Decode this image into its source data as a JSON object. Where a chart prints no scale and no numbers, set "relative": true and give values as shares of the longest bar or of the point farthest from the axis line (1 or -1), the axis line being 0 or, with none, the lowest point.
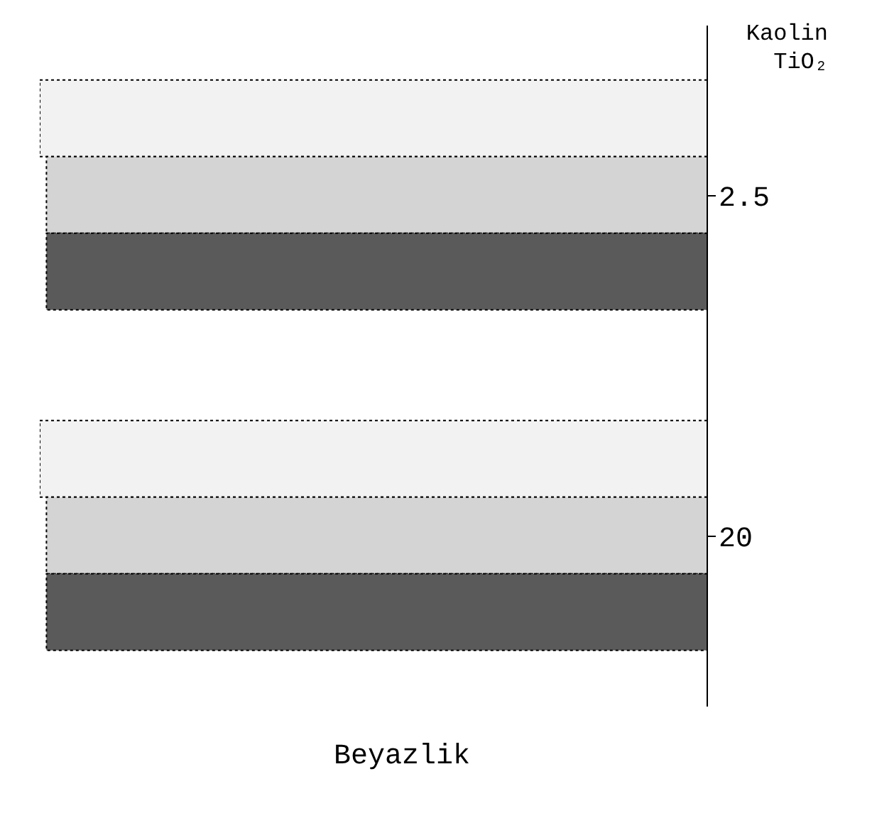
{
  "chart_data": {
    "type": "bar",
    "orientation": "horizontal",
    "relative": true,
    "xlabel": "Beyazlik",
    "ylabel": "TiO₂",
    "annotations": [
      "Kaolin"
    ],
    "categories": [
      "2.5",
      "20"
    ],
    "series": [
      {
        "color": "#f2f2f2",
        "values": [
          1,
          1
        ]
      },
      {
        "color": "#d4d4d4",
        "values": [
          0.99,
          0.99
        ]
      },
      {
        "color": "#5a5a5a",
        "values": [
          0.99,
          0.99
        ]
      }
    ],
    "grid": false,
    "legend": false
  }
}
